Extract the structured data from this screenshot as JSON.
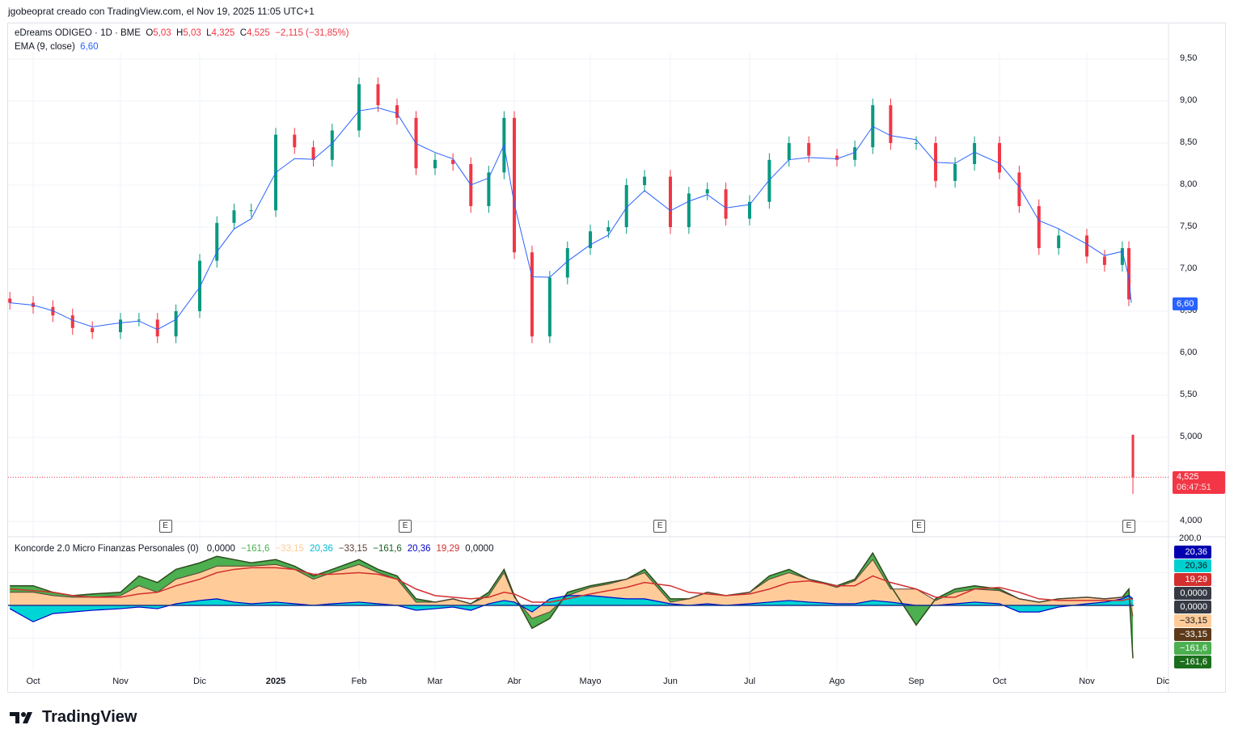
{
  "header": {
    "attribution": "jgobeoprat creado con TradingView.com, el Nov 19, 2025 11:05 UTC+1"
  },
  "legend": {
    "symbol": "eDreams ODIGEO · 1D · BME",
    "open_label": "O",
    "open": "5,03",
    "high_label": "H",
    "high": "5,03",
    "low_label": "L",
    "low": "4,325",
    "close_label": "C",
    "close": "4,525",
    "change": "−2,115 (−31,85%)",
    "ema_label": "EMA (9, close)",
    "ema_value": "6,60"
  },
  "indicator_legend": {
    "name": "Koncorde 2.0 Micro Finanzas Personales (0)",
    "values": [
      {
        "text": "0,0000",
        "color": "#131722"
      },
      {
        "text": "−161,6",
        "color": "#4caf50"
      },
      {
        "text": "−33,15",
        "color": "#ffcc99"
      },
      {
        "text": "20,36",
        "color": "#00bcd4"
      },
      {
        "text": "−33,15",
        "color": "#5d4037"
      },
      {
        "text": "−161,6",
        "color": "#1b5e20"
      },
      {
        "text": "20,36",
        "color": "#0000c8"
      },
      {
        "text": "19,29",
        "color": "#d32f2f"
      },
      {
        "text": "0,0000",
        "color": "#131722"
      }
    ]
  },
  "price_axis": [
    "9,50",
    "9,00",
    "8,50",
    "8,00",
    "7,50",
    "7,00",
    "6,50",
    "6,00",
    "5,50",
    "5,000",
    "4,000"
  ],
  "price_badges": {
    "ema": "6,60",
    "last": "4,525",
    "countdown": "06:47:51"
  },
  "indicator_axis": {
    "top": "200,0"
  },
  "indicator_badges": [
    {
      "text": "20,36",
      "bg": "#0000b0"
    },
    {
      "text": "20,36",
      "bg": "#00d0d0",
      "fg": "#131722"
    },
    {
      "text": "19,29",
      "bg": "#d32f2f"
    },
    {
      "text": "0,0000",
      "bg": "#363a45"
    },
    {
      "text": "0,0000",
      "bg": "#363a45"
    },
    {
      "text": "−33,15",
      "bg": "#ffcc99",
      "fg": "#131722"
    },
    {
      "text": "−33,15",
      "bg": "#5d3a1a"
    },
    {
      "text": "−161,6",
      "bg": "#4caf50"
    },
    {
      "text": "−161,6",
      "bg": "#1b6e1b"
    }
  ],
  "x_axis": [
    {
      "label": "Oct",
      "m": "2024-10"
    },
    {
      "label": "Nov",
      "m": "2024-11"
    },
    {
      "label": "Dic",
      "m": "2024-12"
    },
    {
      "label": "2025",
      "m": "2025-01",
      "bold": true
    },
    {
      "label": "Feb",
      "m": "2025-02"
    },
    {
      "label": "Mar",
      "m": "2025-03"
    },
    {
      "label": "Abr",
      "m": "2025-04"
    },
    {
      "label": "Mayo",
      "m": "2025-05"
    },
    {
      "label": "Jun",
      "m": "2025-06"
    },
    {
      "label": "Jul",
      "m": "2025-07"
    },
    {
      "label": "Ago",
      "m": "2025-08"
    },
    {
      "label": "Sep",
      "m": "2025-09"
    },
    {
      "label": "Oct",
      "m": "2025-10"
    },
    {
      "label": "Nov",
      "m": "2025-11"
    },
    {
      "label": "Dic",
      "m": "2025-12"
    }
  ],
  "earnings_marker": "E",
  "logo": "TradingView",
  "colors": {
    "up": "#089981",
    "down": "#f23645",
    "ema": "#2962ff"
  },
  "chart_data": {
    "type": "candlestick",
    "ylim": [
      4.0,
      9.6
    ],
    "grid": true,
    "earnings_dates": [
      "2024-11-18",
      "2025-02-18",
      "2025-05-28",
      "2025-09-02",
      "2025-11-18"
    ],
    "last_bar": {
      "date": "2025-11-19",
      "open": 5.03,
      "high": 5.03,
      "low": 4.325,
      "close": 4.525
    },
    "closes": [
      [
        "2024-09-23",
        6.6
      ],
      [
        "2024-10-01",
        6.55
      ],
      [
        "2024-10-08",
        6.45
      ],
      [
        "2024-10-15",
        6.3
      ],
      [
        "2024-10-22",
        6.25
      ],
      [
        "2024-11-01",
        6.4
      ],
      [
        "2024-11-08",
        6.4
      ],
      [
        "2024-11-15",
        6.2
      ],
      [
        "2024-11-22",
        6.5
      ],
      [
        "2024-12-01",
        7.1
      ],
      [
        "2024-12-08",
        7.55
      ],
      [
        "2024-12-15",
        7.7
      ],
      [
        "2024-12-22",
        7.7
      ],
      [
        "2025-01-01",
        8.6
      ],
      [
        "2025-01-08",
        8.45
      ],
      [
        "2025-01-15",
        8.3
      ],
      [
        "2025-01-22",
        8.65
      ],
      [
        "2025-02-01",
        9.2
      ],
      [
        "2025-02-08",
        8.95
      ],
      [
        "2025-02-15",
        8.8
      ],
      [
        "2025-02-22",
        8.2
      ],
      [
        "2025-03-01",
        8.3
      ],
      [
        "2025-03-08",
        8.25
      ],
      [
        "2025-03-15",
        7.75
      ],
      [
        "2025-03-22",
        8.15
      ],
      [
        "2025-03-28",
        8.8
      ],
      [
        "2025-04-01",
        7.2
      ],
      [
        "2025-04-08",
        6.2
      ],
      [
        "2025-04-15",
        6.9
      ],
      [
        "2025-04-22",
        7.25
      ],
      [
        "2025-05-01",
        7.45
      ],
      [
        "2025-05-08",
        7.5
      ],
      [
        "2025-05-15",
        8.0
      ],
      [
        "2025-05-22",
        8.1
      ],
      [
        "2025-06-01",
        7.5
      ],
      [
        "2025-06-08",
        7.9
      ],
      [
        "2025-06-15",
        7.95
      ],
      [
        "2025-06-22",
        7.6
      ],
      [
        "2025-07-01",
        7.8
      ],
      [
        "2025-07-08",
        8.3
      ],
      [
        "2025-07-15",
        8.5
      ],
      [
        "2025-07-22",
        8.35
      ],
      [
        "2025-08-01",
        8.3
      ],
      [
        "2025-08-08",
        8.45
      ],
      [
        "2025-08-15",
        8.95
      ],
      [
        "2025-08-22",
        8.5
      ],
      [
        "2025-09-01",
        8.5
      ],
      [
        "2025-09-08",
        8.05
      ],
      [
        "2025-09-15",
        8.25
      ],
      [
        "2025-09-22",
        8.5
      ],
      [
        "2025-10-01",
        8.15
      ],
      [
        "2025-10-08",
        7.75
      ],
      [
        "2025-10-15",
        7.25
      ],
      [
        "2025-10-22",
        7.4
      ],
      [
        "2025-11-01",
        7.15
      ],
      [
        "2025-11-08",
        7.05
      ],
      [
        "2025-11-15",
        7.25
      ],
      [
        "2025-11-18",
        6.64
      ]
    ],
    "indicator": {
      "ylim": [
        -200,
        200
      ],
      "series_order": [
        "green",
        "tan",
        "cyan",
        "red"
      ],
      "rows": [
        [
          "2024-09-23",
          60,
          40,
          -10,
          50
        ],
        [
          "2024-10-01",
          60,
          40,
          -50,
          45
        ],
        [
          "2024-10-08",
          40,
          30,
          -25,
          40
        ],
        [
          "2024-10-15",
          30,
          25,
          -20,
          30
        ],
        [
          "2024-10-22",
          35,
          25,
          -15,
          25
        ],
        [
          "2024-11-01",
          40,
          30,
          -10,
          25
        ],
        [
          "2024-11-08",
          90,
          60,
          -5,
          35
        ],
        [
          "2024-11-15",
          70,
          40,
          -10,
          40
        ],
        [
          "2024-11-22",
          110,
          80,
          5,
          60
        ],
        [
          "2024-12-01",
          130,
          100,
          15,
          80
        ],
        [
          "2024-12-08",
          150,
          120,
          20,
          100
        ],
        [
          "2024-12-15",
          140,
          120,
          10,
          110
        ],
        [
          "2024-12-22",
          130,
          120,
          5,
          115
        ],
        [
          "2025-01-01",
          140,
          125,
          10,
          115
        ],
        [
          "2025-01-08",
          120,
          110,
          5,
          110
        ],
        [
          "2025-01-15",
          90,
          80,
          0,
          95
        ],
        [
          "2025-01-22",
          110,
          100,
          5,
          95
        ],
        [
          "2025-02-01",
          140,
          125,
          10,
          100
        ],
        [
          "2025-02-08",
          110,
          100,
          5,
          95
        ],
        [
          "2025-02-15",
          90,
          80,
          0,
          80
        ],
        [
          "2025-02-22",
          20,
          10,
          -15,
          50
        ],
        [
          "2025-03-01",
          10,
          10,
          -10,
          30
        ],
        [
          "2025-03-08",
          20,
          20,
          -5,
          25
        ],
        [
          "2025-03-15",
          5,
          5,
          -15,
          20
        ],
        [
          "2025-03-22",
          40,
          30,
          5,
          25
        ],
        [
          "2025-03-28",
          110,
          100,
          15,
          40
        ],
        [
          "2025-04-01",
          30,
          25,
          10,
          35
        ],
        [
          "2025-04-08",
          -70,
          -40,
          -20,
          10
        ],
        [
          "2025-04-15",
          -40,
          -20,
          20,
          10
        ],
        [
          "2025-04-22",
          40,
          30,
          30,
          20
        ],
        [
          "2025-05-01",
          60,
          55,
          30,
          35
        ],
        [
          "2025-05-08",
          70,
          65,
          25,
          45
        ],
        [
          "2025-05-15",
          80,
          80,
          20,
          55
        ],
        [
          "2025-05-22",
          110,
          100,
          20,
          70
        ],
        [
          "2025-06-01",
          20,
          10,
          5,
          60
        ],
        [
          "2025-06-08",
          20,
          20,
          0,
          40
        ],
        [
          "2025-06-15",
          40,
          40,
          5,
          35
        ],
        [
          "2025-06-22",
          30,
          30,
          0,
          30
        ],
        [
          "2025-07-01",
          40,
          40,
          5,
          35
        ],
        [
          "2025-07-08",
          90,
          80,
          10,
          50
        ],
        [
          "2025-07-15",
          110,
          100,
          15,
          70
        ],
        [
          "2025-07-22",
          80,
          80,
          10,
          75
        ],
        [
          "2025-08-01",
          60,
          55,
          5,
          60
        ],
        [
          "2025-08-08",
          80,
          75,
          5,
          60
        ],
        [
          "2025-08-15",
          160,
          140,
          15,
          90
        ],
        [
          "2025-08-22",
          60,
          50,
          10,
          70
        ],
        [
          "2025-09-01",
          -60,
          50,
          0,
          50
        ],
        [
          "2025-09-08",
          20,
          15,
          0,
          25
        ],
        [
          "2025-09-15",
          50,
          40,
          5,
          25
        ],
        [
          "2025-09-22",
          60,
          50,
          10,
          50
        ],
        [
          "2025-10-01",
          50,
          45,
          5,
          55
        ],
        [
          "2025-10-08",
          20,
          20,
          -20,
          40
        ],
        [
          "2025-10-15",
          10,
          10,
          -20,
          20
        ],
        [
          "2025-10-22",
          20,
          20,
          -5,
          15
        ],
        [
          "2025-11-01",
          25,
          25,
          5,
          15
        ],
        [
          "2025-11-08",
          20,
          20,
          10,
          15
        ],
        [
          "2025-11-15",
          25,
          25,
          20,
          15
        ],
        [
          "2025-11-18",
          50,
          30,
          30,
          20
        ],
        [
          "2025-11-19",
          -161.6,
          -33.15,
          20.36,
          19.29
        ]
      ]
    }
  }
}
